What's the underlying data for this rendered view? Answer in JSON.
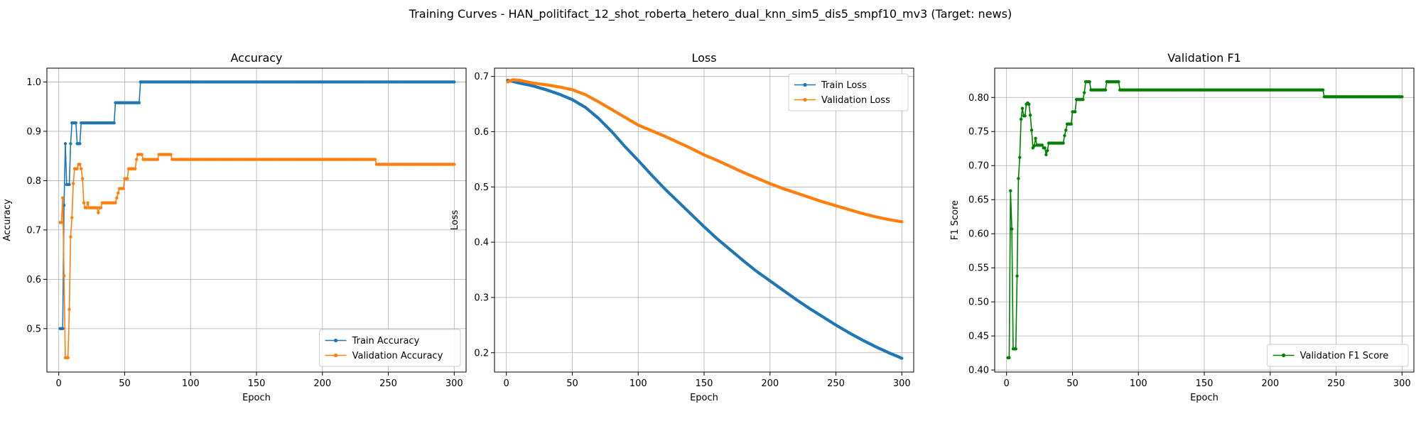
{
  "figure": {
    "suptitle": "Training Curves - HAN_politifact_12_shot_roberta_hetero_dual_knn_sim5_dis5_smpf10_mv3 (Target: news)"
  },
  "colors": {
    "train": "#1f77b4",
    "validation": "#ff7f0e",
    "f1": "#008000",
    "grid": "#b0b0b0",
    "axes": "#000000"
  },
  "chart_data": [
    {
      "type": "line",
      "title": "Accuracy",
      "xlabel": "Epoch",
      "ylabel": "Accuracy",
      "xlim": [
        -9,
        309
      ],
      "ylim": [
        0.412,
        1.028
      ],
      "xticks": [
        0,
        50,
        100,
        150,
        200,
        250,
        300
      ],
      "yticks": [
        0.5,
        0.6,
        0.7,
        0.8,
        0.9,
        1.0
      ],
      "ytick_labels": [
        "0.5",
        "0.6",
        "0.7",
        "0.8",
        "0.9",
        "1.0"
      ],
      "grid": true,
      "legend_position": "lower-right",
      "series": [
        {
          "name": "Train Accuracy",
          "color": "#1f77b4",
          "points": [
            [
              1,
              0.5
            ],
            [
              2,
              0.5
            ],
            [
              3,
              0.5
            ],
            [
              4,
              0.75
            ],
            [
              5,
              0.875
            ],
            [
              6,
              0.792
            ],
            [
              7,
              0.792
            ],
            [
              8,
              0.792
            ],
            [
              9,
              0.875
            ],
            [
              10,
              0.917
            ],
            [
              11,
              0.917
            ],
            [
              12,
              0.917
            ],
            [
              13,
              0.917
            ],
            [
              14,
              0.875
            ],
            [
              15,
              0.875
            ],
            [
              16,
              0.875
            ],
            [
              17,
              0.917
            ],
            [
              42,
              0.917
            ],
            [
              43,
              0.958
            ],
            [
              61,
              0.958
            ],
            [
              62,
              1.0
            ],
            [
              300,
              1.0
            ]
          ]
        },
        {
          "name": "Validation Accuracy",
          "color": "#ff7f0e",
          "points": [
            [
              1,
              0.715
            ],
            [
              2,
              0.715
            ],
            [
              3,
              0.765
            ],
            [
              4,
              0.607
            ],
            [
              5,
              0.441
            ],
            [
              6,
              0.441
            ],
            [
              7,
              0.441
            ],
            [
              8,
              0.539
            ],
            [
              9,
              0.686
            ],
            [
              10,
              0.725
            ],
            [
              11,
              0.794
            ],
            [
              12,
              0.824
            ],
            [
              13,
              0.824
            ],
            [
              14,
              0.824
            ],
            [
              15,
              0.833
            ],
            [
              16,
              0.833
            ],
            [
              17,
              0.824
            ],
            [
              18,
              0.804
            ],
            [
              19,
              0.755
            ],
            [
              20,
              0.745
            ],
            [
              21,
              0.745
            ],
            [
              22,
              0.755
            ],
            [
              23,
              0.745
            ],
            [
              29,
              0.745
            ],
            [
              30,
              0.735
            ],
            [
              31,
              0.745
            ],
            [
              33,
              0.755
            ],
            [
              43,
              0.755
            ],
            [
              44,
              0.765
            ],
            [
              45,
              0.775
            ],
            [
              46,
              0.784
            ],
            [
              49,
              0.784
            ],
            [
              50,
              0.804
            ],
            [
              52,
              0.804
            ],
            [
              53,
              0.824
            ],
            [
              58,
              0.824
            ],
            [
              59,
              0.843
            ],
            [
              60,
              0.853
            ],
            [
              63,
              0.853
            ],
            [
              64,
              0.843
            ],
            [
              75,
              0.843
            ],
            [
              76,
              0.853
            ],
            [
              85,
              0.853
            ],
            [
              86,
              0.843
            ],
            [
              240,
              0.843
            ],
            [
              241,
              0.833
            ],
            [
              300,
              0.833
            ]
          ]
        }
      ]
    },
    {
      "type": "line",
      "title": "Loss",
      "xlabel": "Epoch",
      "ylabel": "Loss",
      "xlim": [
        -9,
        309
      ],
      "ylim": [
        0.165,
        0.715
      ],
      "xticks": [
        0,
        50,
        100,
        150,
        200,
        250,
        300
      ],
      "yticks": [
        0.2,
        0.3,
        0.4,
        0.5,
        0.6,
        0.7
      ],
      "ytick_labels": [
        "0.2",
        "0.3",
        "0.4",
        "0.5",
        "0.6",
        "0.7"
      ],
      "grid": true,
      "legend_position": "upper-right",
      "series": [
        {
          "name": "Train Loss",
          "color": "#1f77b4",
          "points": [
            [
              1,
              0.693
            ],
            [
              10,
              0.688
            ],
            [
              20,
              0.683
            ],
            [
              30,
              0.676
            ],
            [
              40,
              0.668
            ],
            [
              50,
              0.658
            ],
            [
              60,
              0.644
            ],
            [
              70,
              0.624
            ],
            [
              80,
              0.6
            ],
            [
              90,
              0.573
            ],
            [
              100,
              0.548
            ],
            [
              110,
              0.522
            ],
            [
              120,
              0.497
            ],
            [
              130,
              0.474
            ],
            [
              140,
              0.451
            ],
            [
              150,
              0.428
            ],
            [
              160,
              0.406
            ],
            [
              170,
              0.386
            ],
            [
              180,
              0.366
            ],
            [
              190,
              0.347
            ],
            [
              200,
              0.33
            ],
            [
              210,
              0.313
            ],
            [
              220,
              0.296
            ],
            [
              230,
              0.28
            ],
            [
              240,
              0.265
            ],
            [
              250,
              0.25
            ],
            [
              260,
              0.236
            ],
            [
              270,
              0.223
            ],
            [
              280,
              0.211
            ],
            [
              290,
              0.2
            ],
            [
              300,
              0.19
            ]
          ]
        },
        {
          "name": "Validation Loss",
          "color": "#ff7f0e",
          "points": [
            [
              1,
              0.69
            ],
            [
              5,
              0.694
            ],
            [
              10,
              0.693
            ],
            [
              20,
              0.688
            ],
            [
              30,
              0.685
            ],
            [
              40,
              0.681
            ],
            [
              50,
              0.676
            ],
            [
              60,
              0.667
            ],
            [
              70,
              0.654
            ],
            [
              80,
              0.64
            ],
            [
              90,
              0.626
            ],
            [
              100,
              0.612
            ],
            [
              110,
              0.602
            ],
            [
              120,
              0.592
            ],
            [
              130,
              0.581
            ],
            [
              140,
              0.57
            ],
            [
              150,
              0.558
            ],
            [
              160,
              0.548
            ],
            [
              170,
              0.537
            ],
            [
              180,
              0.526
            ],
            [
              190,
              0.516
            ],
            [
              200,
              0.506
            ],
            [
              210,
              0.497
            ],
            [
              220,
              0.489
            ],
            [
              230,
              0.481
            ],
            [
              240,
              0.473
            ],
            [
              250,
              0.466
            ],
            [
              260,
              0.459
            ],
            [
              270,
              0.452
            ],
            [
              280,
              0.446
            ],
            [
              290,
              0.441
            ],
            [
              300,
              0.437
            ]
          ]
        }
      ]
    },
    {
      "type": "line",
      "title": "Validation F1",
      "xlabel": "Epoch",
      "ylabel": "F1 Score",
      "xlim": [
        -9,
        309
      ],
      "ylim": [
        0.397,
        0.843
      ],
      "xticks": [
        0,
        50,
        100,
        150,
        200,
        250,
        300
      ],
      "yticks": [
        0.4,
        0.45,
        0.5,
        0.55,
        0.6,
        0.65,
        0.7,
        0.75,
        0.8
      ],
      "ytick_labels": [
        "0.40",
        "0.45",
        "0.50",
        "0.55",
        "0.60",
        "0.65",
        "0.70",
        "0.75",
        "0.80"
      ],
      "grid": true,
      "legend_position": "lower-right",
      "series": [
        {
          "name": "Validation F1 Score",
          "color": "#008000",
          "points": [
            [
              1,
              0.418
            ],
            [
              2,
              0.418
            ],
            [
              3,
              0.663
            ],
            [
              4,
              0.607
            ],
            [
              5,
              0.431
            ],
            [
              6,
              0.431
            ],
            [
              7,
              0.431
            ],
            [
              8,
              0.538
            ],
            [
              9,
              0.681
            ],
            [
              10,
              0.712
            ],
            [
              11,
              0.768
            ],
            [
              12,
              0.784
            ],
            [
              13,
              0.773
            ],
            [
              14,
              0.773
            ],
            [
              15,
              0.79
            ],
            [
              16,
              0.792
            ],
            [
              17,
              0.79
            ],
            [
              18,
              0.774
            ],
            [
              19,
              0.752
            ],
            [
              20,
              0.726
            ],
            [
              21,
              0.729
            ],
            [
              22,
              0.74
            ],
            [
              23,
              0.73
            ],
            [
              27,
              0.73
            ],
            [
              28,
              0.726
            ],
            [
              29,
              0.726
            ],
            [
              30,
              0.716
            ],
            [
              31,
              0.722
            ],
            [
              32,
              0.733
            ],
            [
              43,
              0.733
            ],
            [
              44,
              0.744
            ],
            [
              45,
              0.752
            ],
            [
              46,
              0.761
            ],
            [
              49,
              0.761
            ],
            [
              50,
              0.779
            ],
            [
              52,
              0.779
            ],
            [
              53,
              0.797
            ],
            [
              58,
              0.797
            ],
            [
              59,
              0.807
            ],
            [
              60,
              0.823
            ],
            [
              63,
              0.823
            ],
            [
              64,
              0.811
            ],
            [
              75,
              0.811
            ],
            [
              76,
              0.823
            ],
            [
              85,
              0.823
            ],
            [
              86,
              0.811
            ],
            [
              240,
              0.811
            ],
            [
              241,
              0.801
            ],
            [
              300,
              0.801
            ]
          ]
        }
      ]
    }
  ]
}
